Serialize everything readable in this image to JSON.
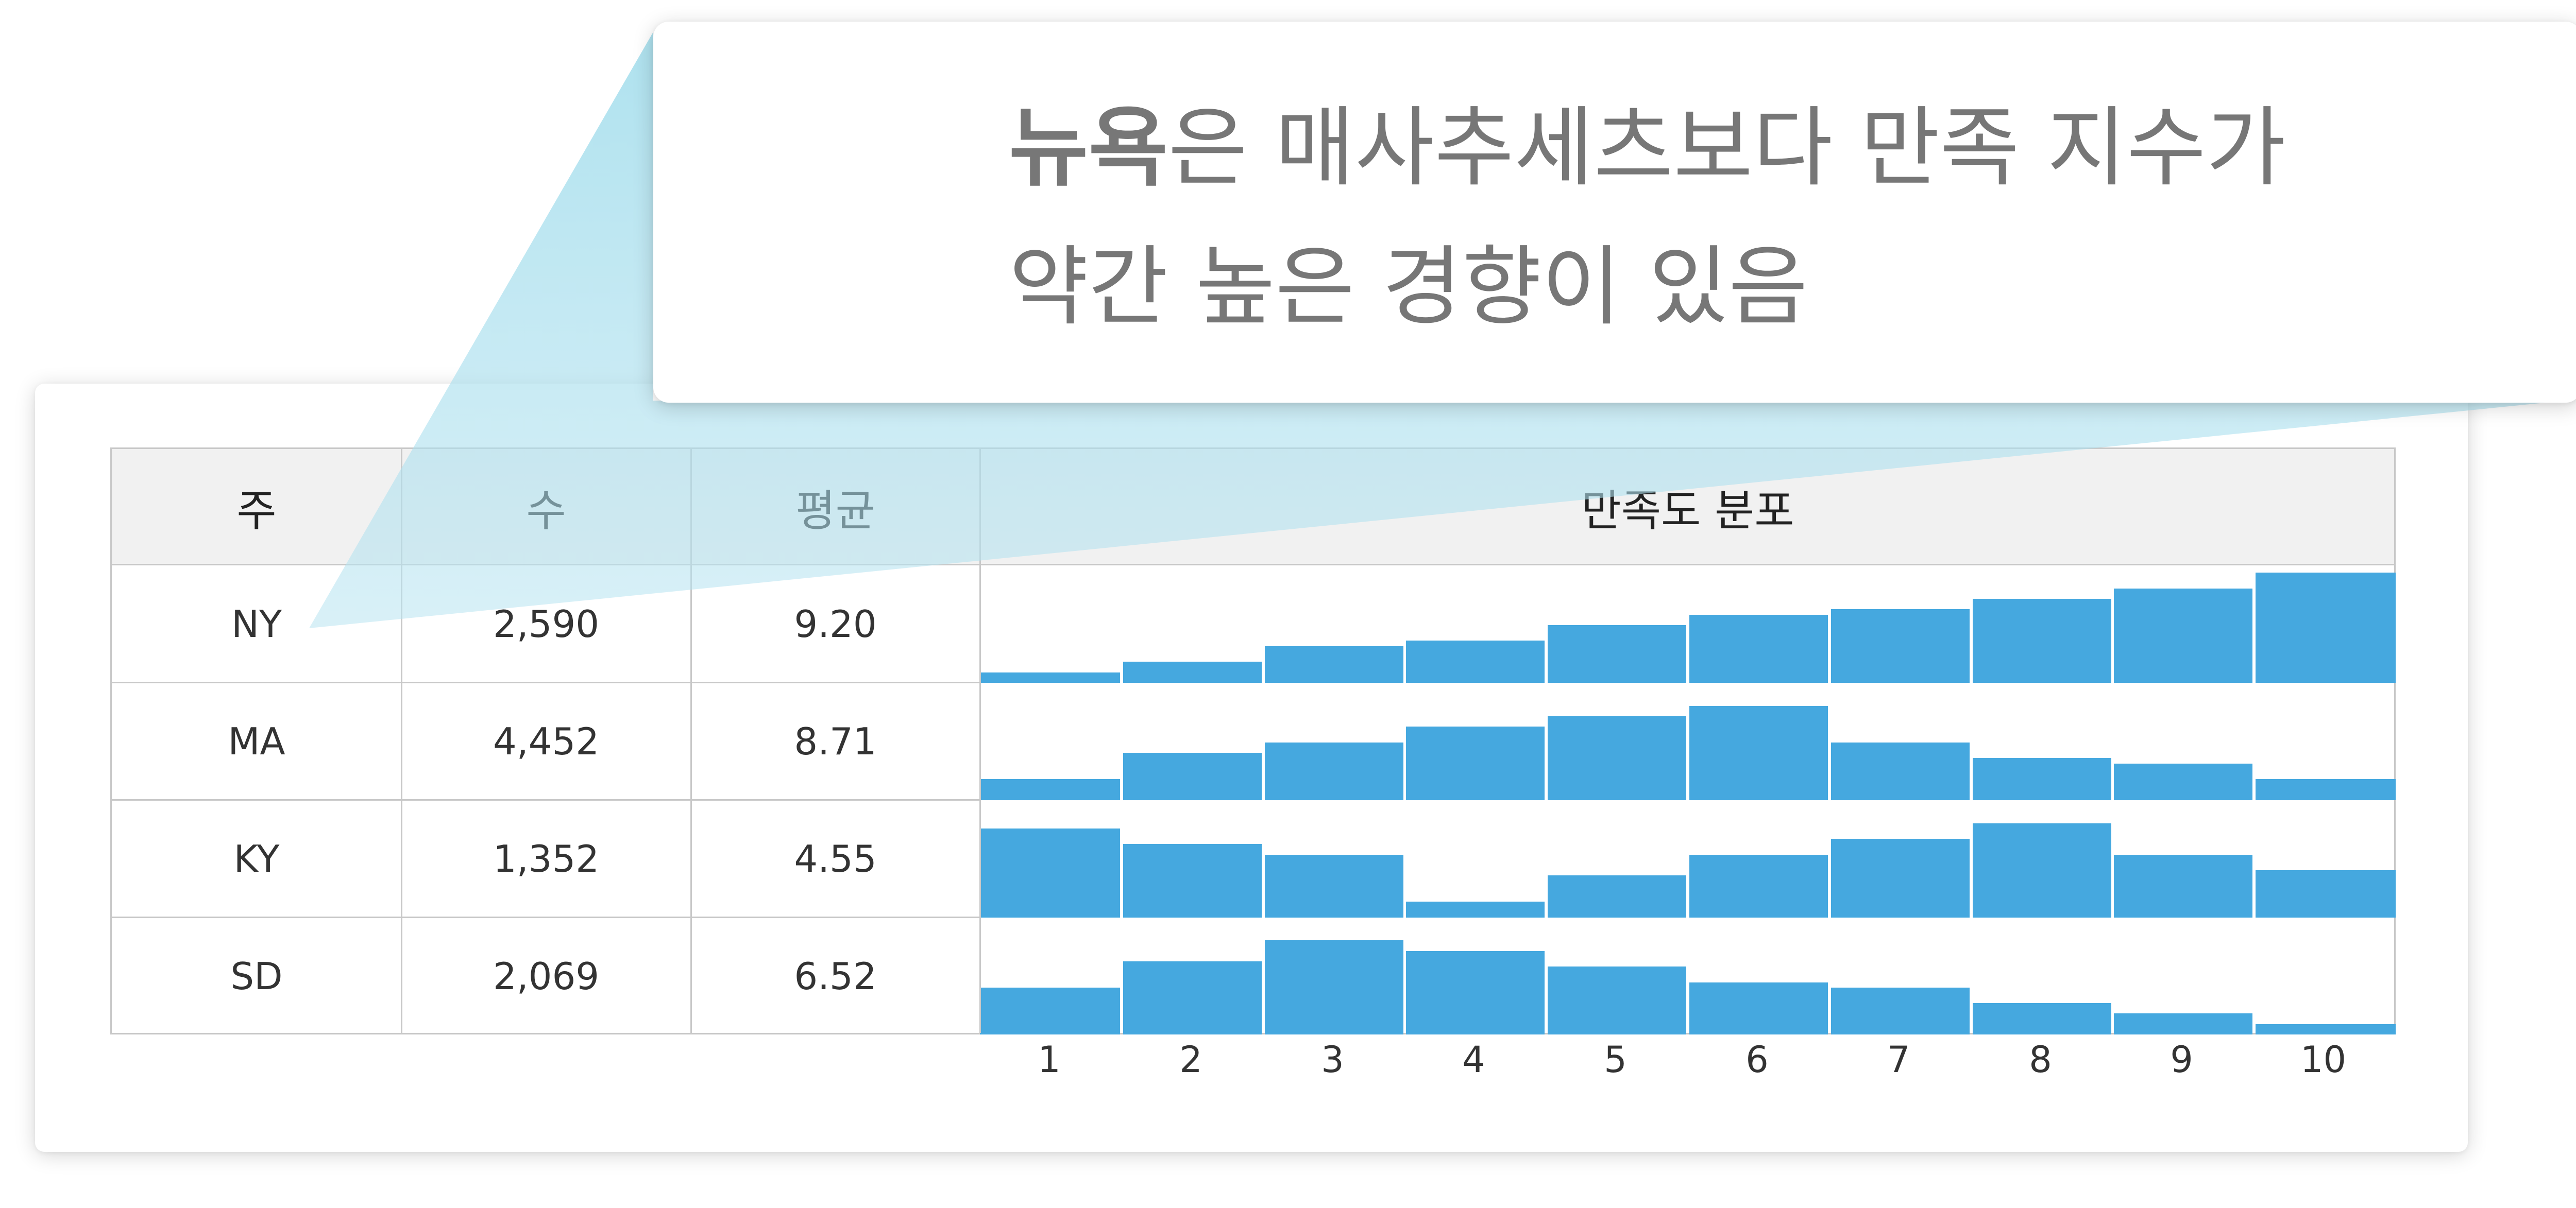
{
  "table": {
    "headers": [
      "주",
      "수",
      "평균",
      "만족도 분포"
    ],
    "rows": [
      {
        "state": "NY",
        "count": "2,590",
        "mean": "9.20"
      },
      {
        "state": "MA",
        "count": "4,452",
        "mean": "8.71"
      },
      {
        "state": "KY",
        "count": "1,352",
        "mean": "4.55"
      },
      {
        "state": "SD",
        "count": "2,069",
        "mean": "6.52"
      }
    ]
  },
  "callout": {
    "bold": "뉴욕",
    "line1_rest": "은 매사추세츠보다 만족 지수가",
    "line2": "약간 높은 경향이 있음"
  },
  "chart_data": {
    "type": "bar",
    "title": "만족도 분포",
    "categories": [
      "1",
      "2",
      "3",
      "4",
      "5",
      "6",
      "7",
      "8",
      "9",
      "10"
    ],
    "series": [
      {
        "name": "NY",
        "values": [
          2,
          4,
          7,
          8,
          11,
          13,
          14,
          16,
          18,
          21
        ]
      },
      {
        "name": "MA",
        "values": [
          4,
          9,
          11,
          14,
          16,
          18,
          11,
          8,
          7,
          4
        ]
      },
      {
        "name": "KY",
        "values": [
          17,
          14,
          12,
          3,
          8,
          12,
          15,
          18,
          12,
          9
        ]
      },
      {
        "name": "SD",
        "values": [
          9,
          14,
          18,
          16,
          13,
          10,
          9,
          6,
          4,
          2
        ]
      }
    ],
    "ylim": [
      0,
      21
    ],
    "colors": {
      "bar": "#45a8df"
    }
  }
}
